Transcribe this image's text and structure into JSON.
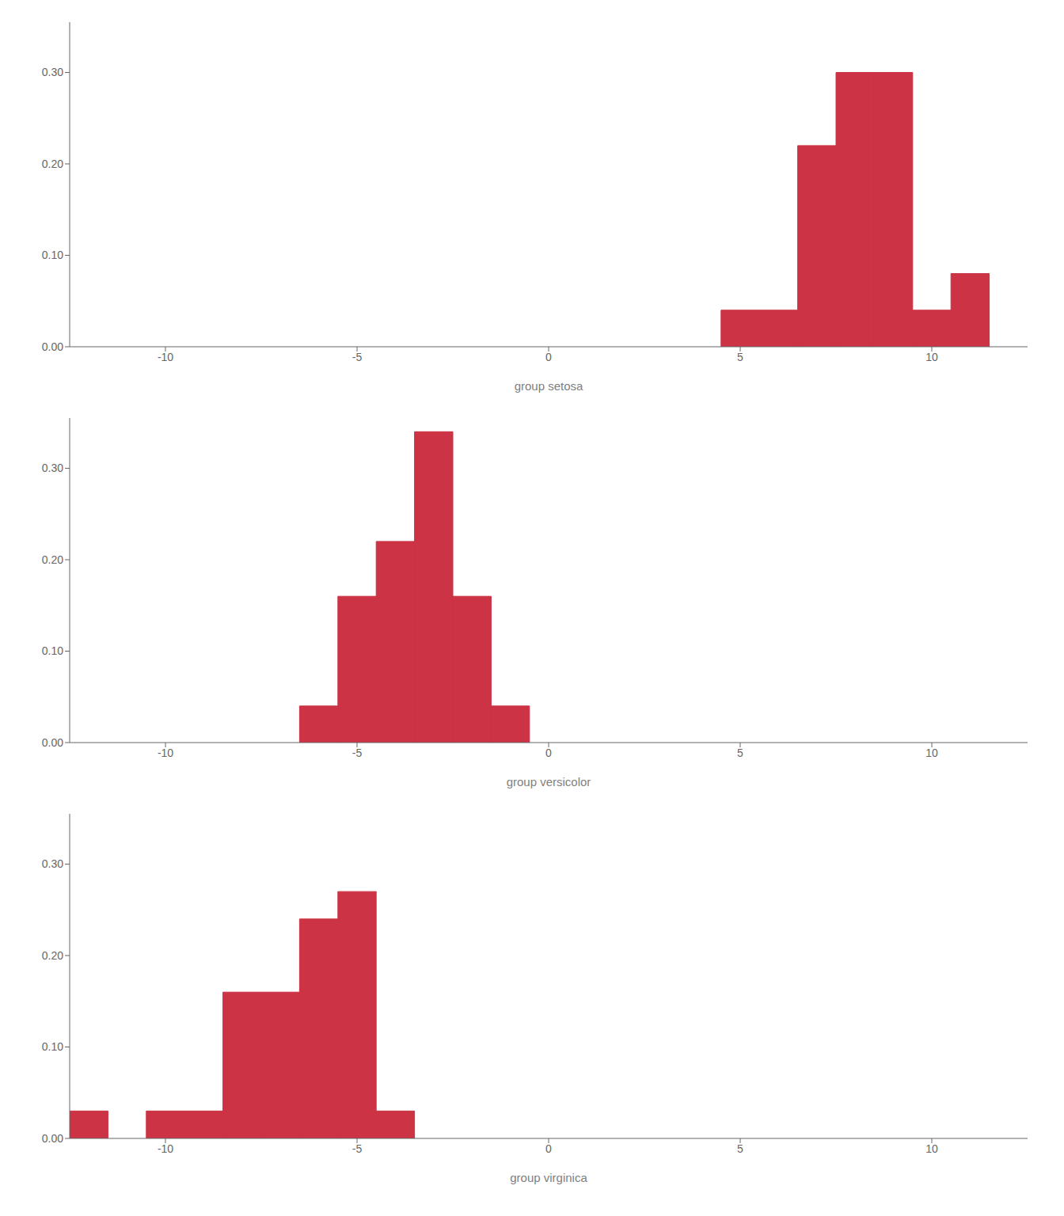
{
  "chart_data": [
    {
      "type": "histogram",
      "xlabel": "group setosa",
      "bins_left": [
        4.5,
        6.5,
        7.5,
        8.5,
        9.5,
        10.5
      ],
      "bins_right": [
        6.5,
        7.5,
        8.5,
        9.5,
        10.5,
        11.5
      ],
      "values": [
        0.04,
        0.22,
        0.3,
        0.3,
        0.04,
        0.08
      ],
      "color": "#cc3344",
      "xlim": [
        -12.5,
        12.5
      ],
      "xticks": [
        -10,
        -5,
        0,
        5,
        10
      ],
      "ylim": [
        0,
        0.355
      ],
      "yticks": [
        {
          "value": 0.0,
          "label": "0.00"
        },
        {
          "value": 0.1,
          "label": "0.10"
        },
        {
          "value": 0.2,
          "label": "0.20"
        },
        {
          "value": 0.3,
          "label": "0.30"
        }
      ],
      "grid": false
    },
    {
      "type": "histogram",
      "xlabel": "group versicolor",
      "bins_left": [
        -6.5,
        -5.5,
        -4.5,
        -3.5,
        -2.5,
        -1.5,
        -0.5
      ],
      "bins_right": [
        -5.5,
        -4.5,
        -3.5,
        -2.5,
        -1.5,
        -0.5,
        0.5
      ],
      "values": [
        0.04,
        0.16,
        0.22,
        0.34,
        0.16,
        0.04,
        0.0
      ],
      "color": "#cc3344",
      "xlim": [
        -12.5,
        12.5
      ],
      "xticks": [
        -10,
        -5,
        0,
        5,
        10
      ],
      "ylim": [
        0,
        0.355
      ],
      "yticks": [
        {
          "value": 0.0,
          "label": "0.00"
        },
        {
          "value": 0.1,
          "label": "0.10"
        },
        {
          "value": 0.2,
          "label": "0.20"
        },
        {
          "value": 0.3,
          "label": "0.30"
        }
      ],
      "grid": false
    },
    {
      "type": "histogram",
      "xlabel": "group virginica",
      "bins_left": [
        -12.5,
        -10.5,
        -9.5,
        -8.5,
        -7.5,
        -6.5,
        -5.5,
        -4.5
      ],
      "bins_right": [
        -11.5,
        -9.5,
        -8.5,
        -7.5,
        -6.5,
        -5.5,
        -4.5,
        -3.5
      ],
      "values": [
        0.03,
        0.03,
        0.03,
        0.16,
        0.16,
        0.24,
        0.27,
        0.03
      ],
      "color": "#cc3344",
      "xlim": [
        -12.5,
        12.5
      ],
      "xticks": [
        -10,
        -5,
        0,
        5,
        10
      ],
      "ylim": [
        0,
        0.355
      ],
      "yticks": [
        {
          "value": 0.0,
          "label": "0.00"
        },
        {
          "value": 0.1,
          "label": "0.10"
        },
        {
          "value": 0.2,
          "label": "0.20"
        },
        {
          "value": 0.3,
          "label": "0.30"
        }
      ],
      "grid": false
    }
  ]
}
